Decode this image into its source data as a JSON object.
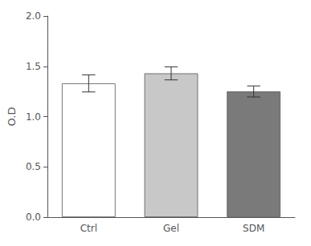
{
  "chart_data": {
    "type": "bar",
    "categories": [
      "Ctrl",
      "Gel",
      "SDM"
    ],
    "values": [
      1.33,
      1.43,
      1.25
    ],
    "errors": [
      0.085,
      0.065,
      0.055
    ],
    "colors": [
      "#ffffff",
      "#c8c8c8",
      "#7a7a7a"
    ],
    "ylabel": "O.D",
    "ylim": [
      0.0,
      2.0
    ],
    "yticks": [
      {
        "value": 0.0,
        "label": "0.0"
      },
      0.5,
      {
        "value": 1.0,
        "label": "1.0"
      },
      1.5,
      {
        "value": 2.0,
        "label": "2.0"
      }
    ],
    "grid": false
  }
}
